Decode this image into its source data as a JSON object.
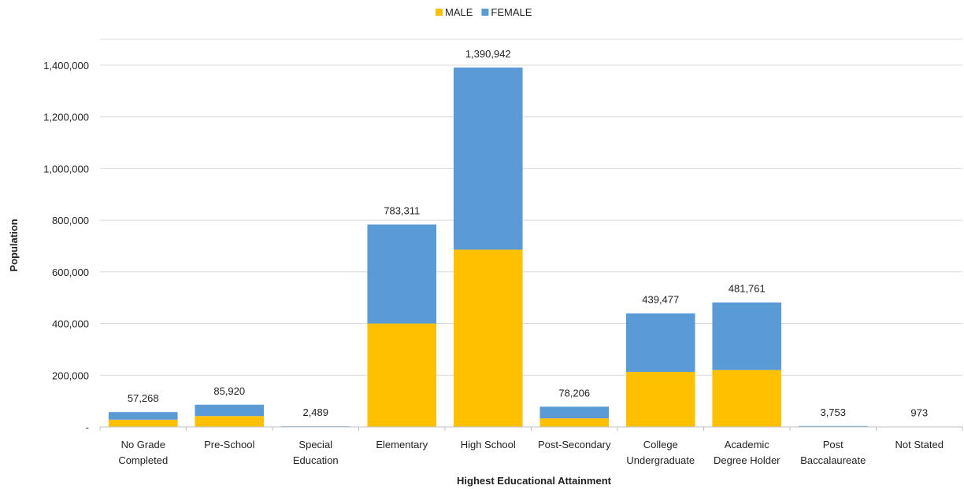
{
  "chart_data": {
    "type": "bar",
    "stacked": true,
    "xlabel": "Highest Educational Attainment",
    "ylabel": "Population",
    "ylim": [
      0,
      1500000
    ],
    "yticks": [
      0,
      200000,
      400000,
      600000,
      800000,
      1000000,
      1200000,
      1400000
    ],
    "ytick_labels": [
      "-",
      "200,000",
      "400,000",
      "600,000",
      "800,000",
      "1,000,000",
      "1,200,000",
      "1,400,000"
    ],
    "grid": true,
    "legend_position": "top-center",
    "categories": [
      [
        "No Grade",
        "Completed"
      ],
      [
        "Pre-School"
      ],
      [
        "Special",
        "Education"
      ],
      [
        "Elementary"
      ],
      [
        "High School"
      ],
      [
        "Post-Secondary"
      ],
      [
        "College",
        "Undergraduate"
      ],
      [
        "Academic",
        "Degree Holder"
      ],
      [
        "Post",
        "Baccalaureate"
      ],
      [
        "Not Stated"
      ]
    ],
    "series": [
      {
        "name": "MALE",
        "color": "#FFC000",
        "values": [
          28000,
          42000,
          1200,
          400000,
          686000,
          33000,
          213000,
          220000,
          1800,
          480
        ]
      },
      {
        "name": "FEMALE",
        "color": "#5B9BD5",
        "values": [
          29268,
          43920,
          1289,
          383311,
          704942,
          45206,
          226477,
          261761,
          1953,
          493
        ]
      }
    ],
    "totals": [
      57268,
      85920,
      2489,
      783311,
      1390942,
      78206,
      439477,
      481761,
      3753,
      973
    ],
    "total_labels": [
      "57,268",
      "85,920",
      "2,489",
      "783,311",
      "1,390,942",
      "78,206",
      "439,477",
      "481,761",
      "3,753",
      "973"
    ]
  }
}
